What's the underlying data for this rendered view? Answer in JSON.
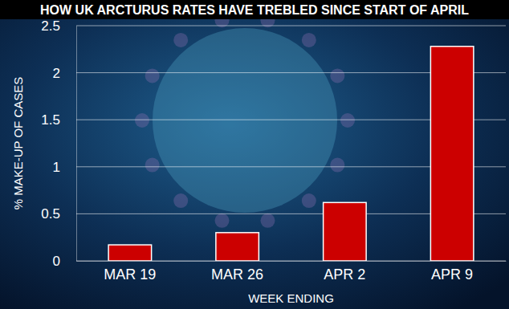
{
  "chart_data": {
    "type": "bar",
    "title": "HOW UK ARCTURUS RATES HAVE TREBLED SINCE START OF APRIL",
    "x_label": "WEEK ENDING",
    "y_label": "% MAKE-UP OF CASES",
    "categories": [
      "MAR 19",
      "MAR 26",
      "APR 2",
      "APR 9"
    ],
    "values": [
      0.17,
      0.3,
      0.62,
      2.28
    ],
    "color": "#cc0000",
    "ylim": [
      0,
      2.5
    ],
    "yticks": [
      0,
      0.5,
      1,
      1.5,
      2,
      2.5
    ],
    "grid": true
  }
}
